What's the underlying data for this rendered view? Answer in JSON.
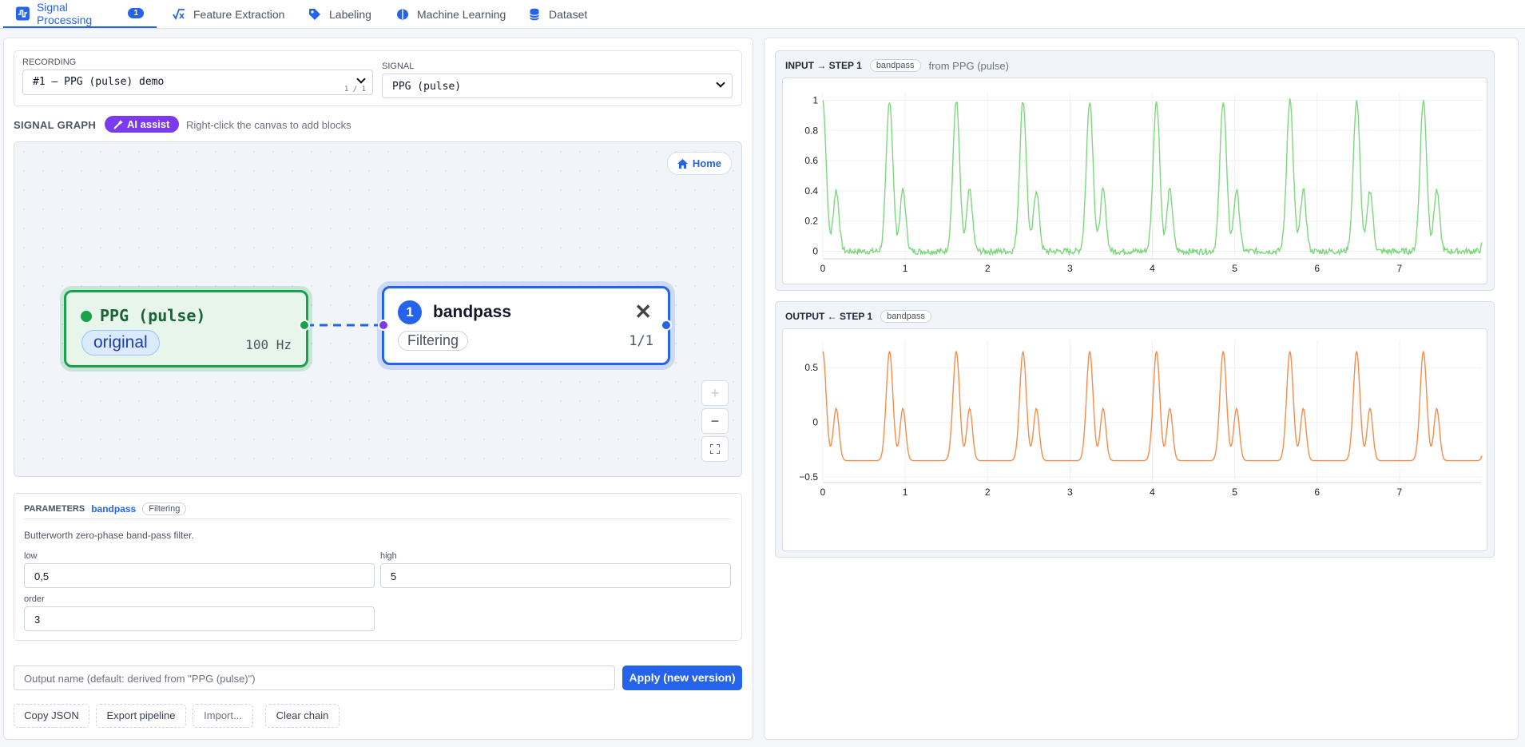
{
  "tabs": [
    {
      "label": "Signal Processing",
      "badge": "1",
      "icon": "wave-icon",
      "active": true
    },
    {
      "label": "Feature Extraction",
      "icon": "function-icon"
    },
    {
      "label": "Labeling",
      "icon": "tag-icon"
    },
    {
      "label": "Machine Learning",
      "icon": "brain-icon"
    },
    {
      "label": "Dataset",
      "icon": "database-icon"
    }
  ],
  "recording": {
    "label": "RECORDING",
    "value": "#1 — PPG (pulse) demo",
    "counter": "1 / 1"
  },
  "signal": {
    "label": "SIGNAL",
    "value": "PPG (pulse)"
  },
  "graph": {
    "title": "SIGNAL GRAPH",
    "ai_label": "AI assist",
    "hint": "Right-click the canvas to add blocks",
    "home_label": "Home"
  },
  "source_node": {
    "title": "PPG (pulse)",
    "pill": "original",
    "rate": "100 Hz"
  },
  "step_node": {
    "number": "1",
    "title": "bandpass",
    "pill": "Filtering",
    "ratio": "1/1",
    "close": "✕"
  },
  "zoom": {
    "plus": "+",
    "minus": "−"
  },
  "params": {
    "title": "PARAMETERS",
    "block": "bandpass",
    "category": "Filtering",
    "description": "Butterworth zero-phase band-pass filter.",
    "fields": [
      {
        "label": "low",
        "value": "0,5"
      },
      {
        "label": "high",
        "value": "5"
      },
      {
        "label": "order",
        "value": "3"
      }
    ]
  },
  "output": {
    "placeholder": "Output name (default: derived from \"PPG (pulse)\")",
    "apply_label": "Apply (new version)"
  },
  "actions": {
    "copy": "Copy JSON",
    "export": "Export pipeline",
    "import": "Import...",
    "clear": "Clear chain"
  },
  "input_plot": {
    "title": "INPUT → STEP 1",
    "tag": "bandpass",
    "source": "from PPG (pulse)"
  },
  "output_plot": {
    "title": "OUTPUT ← STEP 1",
    "tag": "bandpass"
  },
  "colors": {
    "accent": "#2563eb",
    "ai": "#7c3aed",
    "input_line": "#7dd87d",
    "output_line": "#f58d4a",
    "source_node": "#16a34a"
  },
  "chart_data": [
    {
      "type": "line",
      "title": "INPUT → STEP 1",
      "xlim": [
        0,
        8
      ],
      "ylim": [
        -0.05,
        1.05
      ],
      "xticks": [
        "0",
        "1",
        "2",
        "3",
        "4",
        "5",
        "6",
        "7"
      ],
      "yticks": [
        "0",
        "0.2",
        "0.4",
        "0.6",
        "0.8",
        "1"
      ],
      "peak_times": [
        0.0,
        0.81,
        1.62,
        2.43,
        3.24,
        4.05,
        4.86,
        5.67,
        6.48,
        7.29,
        8.0
      ],
      "series": [
        {
          "peak": 1.0,
          "secondary": 0.45,
          "trough": 0.0
        }
      ]
    },
    {
      "type": "line",
      "title": "OUTPUT ← STEP 1",
      "xlim": [
        0,
        8
      ],
      "ylim": [
        -0.55,
        0.75
      ],
      "xticks": [
        "0",
        "1",
        "2",
        "3",
        "4",
        "5",
        "6",
        "7"
      ],
      "yticks": [
        "−0.5",
        "0",
        "0.5"
      ],
      "peak_times": [
        0.81,
        1.62,
        2.43,
        3.24,
        4.05,
        4.86,
        5.67,
        6.48,
        7.29
      ],
      "series": [
        {
          "peak": 0.65,
          "secondary": 0.18,
          "trough": -0.35
        }
      ]
    }
  ]
}
